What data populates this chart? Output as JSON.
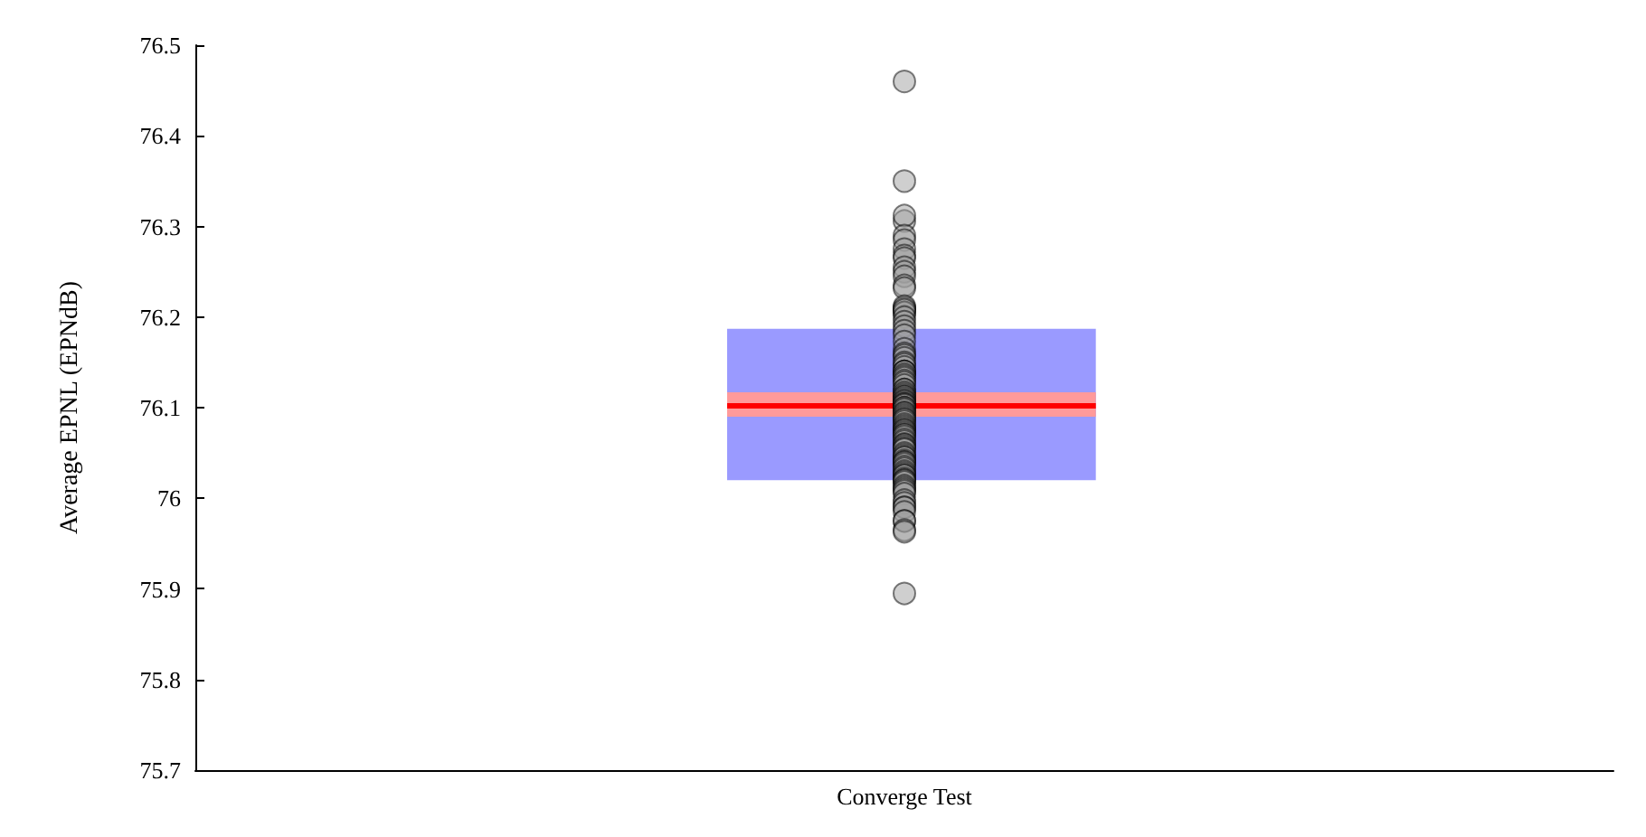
{
  "chart_data": {
    "type": "scatter",
    "ylabel": "Average EPNL (EPNdB)",
    "categories": [
      "Converge Test"
    ],
    "series": [
      {
        "color": "#a0a0a0",
        "x": [
          "Converge Test",
          "Converge Test",
          "Converge Test",
          "Converge Test",
          "Converge Test",
          "Converge Test",
          "Converge Test",
          "Converge Test",
          "Converge Test",
          "Converge Test",
          "Converge Test",
          "Converge Test",
          "Converge Test",
          "Converge Test",
          "Converge Test",
          "Converge Test",
          "Converge Test",
          "Converge Test",
          "Converge Test",
          "Converge Test",
          "Converge Test",
          "Converge Test",
          "Converge Test",
          "Converge Test",
          "Converge Test",
          "Converge Test",
          "Converge Test",
          "Converge Test",
          "Converge Test",
          "Converge Test",
          "Converge Test",
          "Converge Test",
          "Converge Test",
          "Converge Test",
          "Converge Test",
          "Converge Test",
          "Converge Test",
          "Converge Test",
          "Converge Test",
          "Converge Test",
          "Converge Test",
          "Converge Test",
          "Converge Test",
          "Converge Test",
          "Converge Test",
          "Converge Test",
          "Converge Test",
          "Converge Test",
          "Converge Test",
          "Converge Test",
          "Converge Test",
          "Converge Test",
          "Converge Test",
          "Converge Test",
          "Converge Test",
          "Converge Test",
          "Converge Test",
          "Converge Test",
          "Converge Test",
          "Converge Test",
          "Converge Test",
          "Converge Test",
          "Converge Test",
          "Converge Test",
          "Converge Test",
          "Converge Test",
          "Converge Test",
          "Converge Test",
          "Converge Test",
          "Converge Test",
          "Converge Test",
          "Converge Test",
          "Converge Test",
          "Converge Test",
          "Converge Test",
          "Converge Test",
          "Converge Test",
          "Converge Test",
          "Converge Test",
          "Converge Test",
          "Converge Test",
          "Converge Test",
          "Converge Test",
          "Converge Test",
          "Converge Test",
          "Converge Test",
          "Converge Test",
          "Converge Test",
          "Converge Test",
          "Converge Test",
          "Converge Test",
          "Converge Test",
          "Converge Test",
          "Converge Test",
          "Converge Test",
          "Converge Test",
          "Converge Test",
          "Converge Test",
          "Converge Test",
          "Converge Test",
          "Converge Test",
          "Converge Test",
          "Converge Test",
          "Converge Test",
          "Converge Test",
          "Converge Test",
          "Converge Test",
          "Converge Test",
          "Converge Test",
          "Converge Test",
          "Converge Test",
          "Converge Test",
          "Converge Test"
        ],
        "values": [
          76.46,
          76.35,
          76.306,
          76.312,
          76.29,
          76.285,
          76.275,
          76.268,
          76.265,
          76.255,
          76.25,
          76.245,
          76.235,
          76.232,
          76.21,
          76.21,
          76.212,
          76.205,
          76.205,
          76.208,
          76.2,
          76.195,
          76.19,
          76.185,
          76.18,
          76.173,
          76.165,
          76.16,
          76.158,
          76.155,
          76.15,
          76.148,
          76.145,
          76.14,
          76.14,
          76.14,
          76.137,
          76.135,
          76.133,
          76.13,
          76.128,
          76.125,
          76.12,
          76.12,
          76.117,
          76.115,
          76.113,
          76.112,
          76.11,
          76.108,
          76.107,
          76.105,
          76.104,
          76.103,
          76.1,
          76.1,
          76.098,
          76.095,
          76.094,
          76.092,
          76.09,
          76.088,
          76.087,
          76.085,
          76.082,
          76.08,
          76.078,
          76.076,
          76.075,
          76.073,
          76.071,
          76.07,
          76.068,
          76.065,
          76.063,
          76.06,
          76.059,
          76.057,
          76.055,
          76.054,
          76.05,
          76.048,
          76.046,
          76.045,
          76.042,
          76.04,
          76.04,
          76.038,
          76.035,
          76.033,
          76.03,
          76.028,
          76.026,
          76.025,
          76.022,
          76.02,
          76.02,
          76.018,
          76.014,
          76.012,
          76.01,
          76.008,
          76.005,
          75.998,
          75.995,
          75.99,
          75.99,
          75.985,
          75.975,
          75.975,
          75.965,
          75.963,
          75.895
        ]
      }
    ],
    "ylim": [
      75.7,
      76.5
    ],
    "yticks": [
      75.7,
      75.8,
      75.9,
      76,
      76.1,
      76.2,
      76.3,
      76.4,
      76.5
    ],
    "bands": [
      {
        "axis": "y",
        "from": 76.02,
        "to": 76.187,
        "color": "#9a9aff"
      },
      {
        "axis": "y",
        "from": 76.09,
        "to": 76.117,
        "color": "#ff9a9a"
      }
    ],
    "ref_lines": [
      {
        "axis": "y",
        "value": 76.103,
        "color": "#ff0000"
      }
    ],
    "marker": "circle",
    "grid": false
  }
}
